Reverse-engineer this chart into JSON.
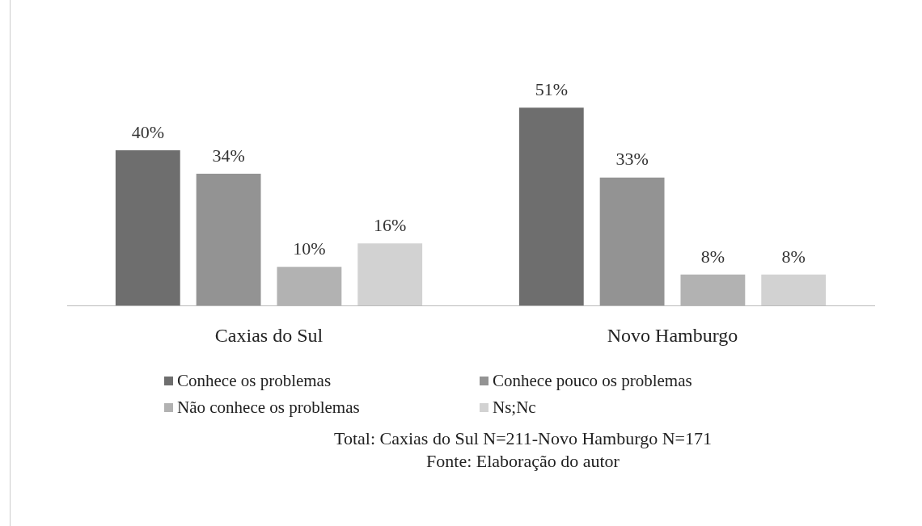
{
  "chart_data": {
    "type": "bar",
    "categories": [
      "Caxias do Sul",
      "Novo Hamburgo"
    ],
    "series": [
      {
        "name": "Conhece os problemas",
        "color": "#6e6e6e",
        "values": [
          40,
          51
        ],
        "value_labels": [
          "40%",
          "51%"
        ]
      },
      {
        "name": "Conhece pouco os problemas",
        "color": "#939393",
        "values": [
          34,
          33
        ],
        "value_labels": [
          "34%",
          "33%"
        ]
      },
      {
        "name": "Não conhece os problemas",
        "color": "#b2b2b2",
        "values": [
          10,
          8
        ],
        "value_labels": [
          "10%",
          "8%"
        ]
      },
      {
        "name": "Ns;Nc",
        "color": "#d2d2d2",
        "values": [
          16,
          8
        ],
        "value_labels": [
          "16%",
          "8%"
        ]
      }
    ],
    "legend": "bottom",
    "grid": false,
    "annotations": [
      "Total: Caxias  do Sul N=211-Novo  Hamburgo  N=171",
      "Fonte: Elaboração  do autor"
    ]
  }
}
